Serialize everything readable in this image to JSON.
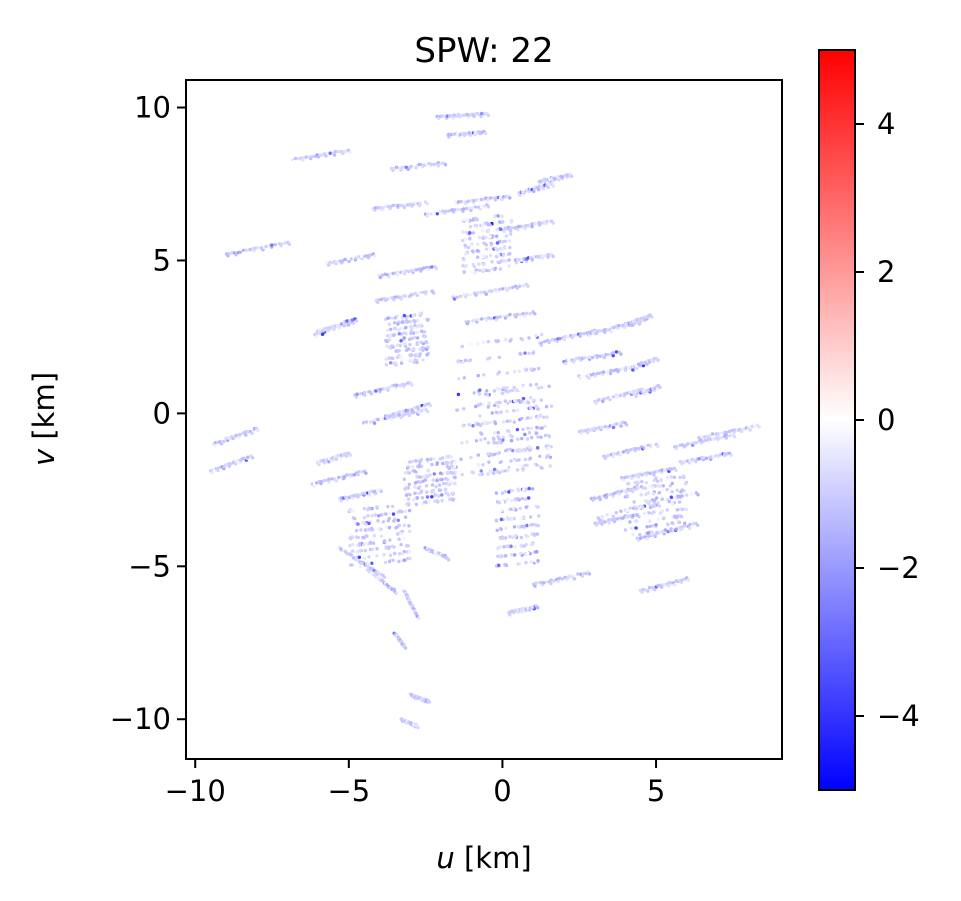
{
  "chart_data": {
    "type": "scatter",
    "title": "SPW: 22",
    "xlabel": {
      "var": "u",
      "unit": " [km]"
    },
    "ylabel": {
      "var": "v",
      "unit": " [km]"
    },
    "xlim": [
      -10.3,
      9.1
    ],
    "ylim": [
      -11.3,
      10.9
    ],
    "xticks": [
      {
        "value": -10,
        "label": "−10"
      },
      {
        "value": -5,
        "label": "−5"
      },
      {
        "value": 0,
        "label": "0"
      },
      {
        "value": 5,
        "label": "5"
      }
    ],
    "yticks": [
      {
        "value": -10,
        "label": "−10"
      },
      {
        "value": -5,
        "label": "−5"
      },
      {
        "value": 0,
        "label": "0"
      },
      {
        "value": 5,
        "label": "5"
      },
      {
        "value": 10,
        "label": "10"
      }
    ],
    "grid": false,
    "colorbar": {
      "cmap": "bwr",
      "range": [
        -5,
        5
      ],
      "colors": [
        "#0000ff",
        "#ffffff",
        "#ff0000"
      ],
      "ticks": [
        {
          "value": -4,
          "label": "−4"
        },
        {
          "value": -2,
          "label": "−2"
        },
        {
          "value": 0,
          "label": "0"
        },
        {
          "value": 2,
          "label": "2"
        },
        {
          "value": 4,
          "label": "4"
        }
      ]
    },
    "tracks": [
      {
        "u": [
          -2.1,
          -0.5
        ],
        "v": [
          9.7,
          9.8
        ]
      },
      {
        "u": [
          -1.8,
          -0.6
        ],
        "v": [
          9.1,
          9.2
        ]
      },
      {
        "u": [
          -6.8,
          -5.0
        ],
        "v": [
          8.3,
          8.6
        ]
      },
      {
        "u": [
          -3.6,
          -1.9
        ],
        "v": [
          8.0,
          8.2
        ]
      },
      {
        "u": [
          -9.0,
          -7.0
        ],
        "v": [
          5.2,
          5.6
        ]
      },
      {
        "u": [
          -5.7,
          -4.2
        ],
        "v": [
          4.9,
          5.2
        ]
      },
      {
        "u": [
          -4.2,
          -2.5
        ],
        "v": [
          6.7,
          6.9
        ]
      },
      {
        "u": [
          -2.5,
          -0.5
        ],
        "v": [
          6.5,
          6.8
        ]
      },
      {
        "u": [
          -1.5,
          0.2
        ],
        "v": [
          6.9,
          7.1
        ]
      },
      {
        "u": [
          0.5,
          1.6
        ],
        "v": [
          7.2,
          7.5
        ]
      },
      {
        "u": [
          1.2,
          2.2
        ],
        "v": [
          7.6,
          7.8
        ]
      },
      {
        "u": [
          0.0,
          1.6
        ],
        "v": [
          6.0,
          6.3
        ]
      },
      {
        "u": [
          -4.0,
          -2.2
        ],
        "v": [
          4.5,
          4.8
        ]
      },
      {
        "u": [
          0.4,
          1.6
        ],
        "v": [
          5.0,
          5.2
        ]
      },
      {
        "u": [
          -4.1,
          -2.3
        ],
        "v": [
          3.7,
          4.0
        ]
      },
      {
        "u": [
          -1.6,
          0.8
        ],
        "v": [
          3.8,
          4.2
        ]
      },
      {
        "u": [
          -6.0,
          -4.9
        ],
        "v": [
          2.7,
          3.0
        ]
      },
      {
        "u": [
          -1.2,
          1.0
        ],
        "v": [
          3.0,
          3.3
        ]
      },
      {
        "u": [
          1.2,
          3.0
        ],
        "v": [
          2.3,
          2.7
        ]
      },
      {
        "u": [
          2.8,
          4.4
        ],
        "v": [
          2.6,
          3.0
        ]
      },
      {
        "u": [
          4.0,
          4.8
        ],
        "v": [
          2.9,
          3.2
        ]
      },
      {
        "u": [
          2.0,
          3.8
        ],
        "v": [
          1.7,
          2.0
        ]
      },
      {
        "u": [
          2.5,
          4.2
        ],
        "v": [
          1.2,
          1.5
        ]
      },
      {
        "u": [
          4.2,
          5.0
        ],
        "v": [
          1.5,
          1.8
        ]
      },
      {
        "u": [
          3.0,
          4.6
        ],
        "v": [
          0.4,
          0.8
        ]
      },
      {
        "u": [
          4.3,
          5.1
        ],
        "v": [
          0.6,
          0.9
        ]
      },
      {
        "u": [
          2.5,
          4.0
        ],
        "v": [
          -0.6,
          -0.3
        ]
      },
      {
        "u": [
          3.3,
          5.0
        ],
        "v": [
          -1.4,
          -1.0
        ]
      },
      {
        "u": [
          5.6,
          7.5
        ],
        "v": [
          -1.1,
          -0.7
        ]
      },
      {
        "u": [
          6.4,
          8.3
        ],
        "v": [
          -0.8,
          -0.4
        ]
      },
      {
        "u": [
          5.8,
          7.4
        ],
        "v": [
          -1.6,
          -1.3
        ]
      },
      {
        "u": [
          3.9,
          5.6
        ],
        "v": [
          -2.1,
          -1.8
        ]
      },
      {
        "u": [
          2.9,
          4.4
        ],
        "v": [
          -2.8,
          -2.4
        ]
      },
      {
        "u": [
          3.1,
          6.3
        ],
        "v": [
          -3.4,
          -2.6
        ]
      },
      {
        "u": [
          4.4,
          6.3
        ],
        "v": [
          -4.1,
          -3.6
        ]
      },
      {
        "u": [
          3.0,
          4.4
        ],
        "v": [
          -3.6,
          -3.3
        ]
      },
      {
        "u": [
          4.5,
          6.0
        ],
        "v": [
          -5.8,
          -5.4
        ]
      },
      {
        "u": [
          1.0,
          2.8
        ],
        "v": [
          -5.6,
          -5.2
        ]
      },
      {
        "u": [
          0.2,
          1.1
        ],
        "v": [
          -6.5,
          -6.3
        ]
      },
      {
        "u": [
          -9.4,
          -8.0
        ],
        "v": [
          -1.0,
          -0.5
        ]
      },
      {
        "u": [
          -9.5,
          -8.2
        ],
        "v": [
          -1.9,
          -1.4
        ]
      },
      {
        "u": [
          -6.0,
          -5.0
        ],
        "v": [
          -1.6,
          -1.3
        ]
      },
      {
        "u": [
          -6.2,
          -4.5
        ],
        "v": [
          -2.3,
          -1.9
        ]
      },
      {
        "u": [
          -5.3,
          -4.0
        ],
        "v": [
          -2.8,
          -2.5
        ]
      },
      {
        "u": [
          -4.5,
          -2.5
        ],
        "v": [
          -0.3,
          0.1
        ]
      },
      {
        "u": [
          -4.8,
          -3.0
        ],
        "v": [
          0.6,
          1.0
        ]
      },
      {
        "u": [
          -3.8,
          -2.4
        ],
        "v": [
          -0.1,
          0.3
        ]
      },
      {
        "u": [
          -6.1,
          -4.8
        ],
        "v": [
          2.6,
          3.1
        ]
      },
      {
        "u": [
          -3.3,
          -2.8
        ],
        "v": [
          -10.0,
          -10.2
        ]
      },
      {
        "u": [
          -3.0,
          -2.4
        ],
        "v": [
          -9.2,
          -9.4
        ]
      },
      {
        "u": [
          -3.5,
          -3.2
        ],
        "v": [
          -7.2,
          -7.6
        ]
      },
      {
        "u": [
          -3.2,
          -2.8
        ],
        "v": [
          -5.8,
          -6.6
        ]
      },
      {
        "u": [
          -2.5,
          -1.8
        ],
        "v": [
          -4.4,
          -4.7
        ]
      },
      {
        "u": [
          -4.4,
          -3.5
        ],
        "v": [
          -5.1,
          -5.8
        ]
      },
      {
        "u": [
          -5.3,
          -3.9
        ],
        "v": [
          -4.4,
          -5.3
        ]
      }
    ],
    "clusters": [
      {
        "u": [
          -1.3,
          0.3
        ],
        "v": [
          4.6,
          6.3
        ]
      },
      {
        "u": [
          -3.8,
          -2.4
        ],
        "v": [
          1.6,
          3.1
        ]
      },
      {
        "u": [
          -1.5,
          1.3
        ],
        "v": [
          -2.0,
          2.2
        ]
      },
      {
        "u": [
          -0.8,
          1.6
        ],
        "v": [
          -2.0,
          0.6
        ]
      },
      {
        "u": [
          -3.2,
          -1.5
        ],
        "v": [
          -1.6,
          -3.0
        ]
      },
      {
        "u": [
          -0.2,
          1.2
        ],
        "v": [
          -2.6,
          -5.0
        ]
      },
      {
        "u": [
          -5.0,
          -3.0
        ],
        "v": [
          -3.2,
          -5.0
        ]
      },
      {
        "u": [
          4.0,
          6.0
        ],
        "v": [
          -2.3,
          -4.0
        ]
      }
    ]
  }
}
